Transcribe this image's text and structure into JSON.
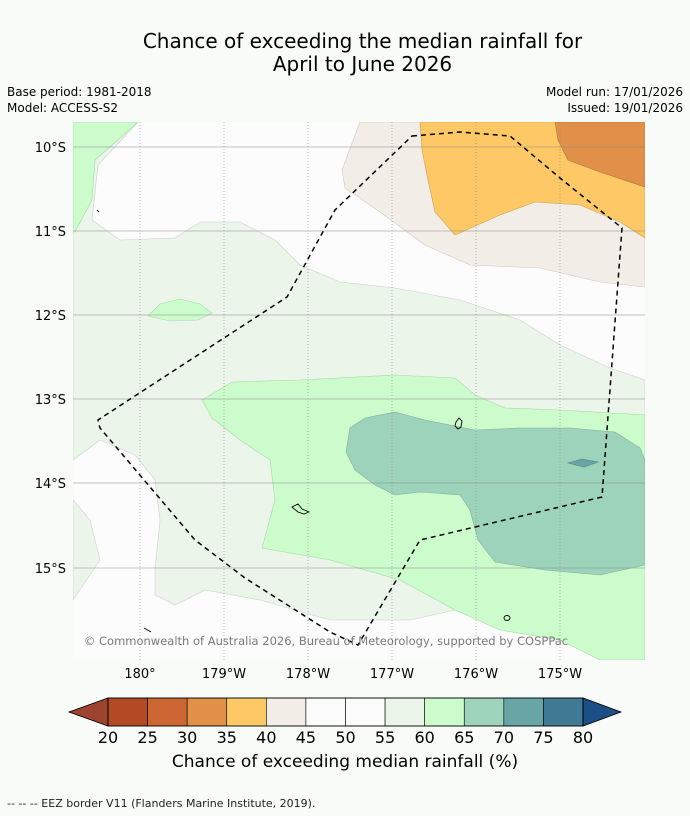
{
  "title": {
    "line1": "Chance of exceeding the median rainfall for",
    "line2": "April to June 2026"
  },
  "meta": {
    "base_period": "Base period: 1981-2018",
    "model": "Model: ACCESS-S2",
    "model_run": "Model run: 17/01/2026",
    "issued": "Issued: 19/01/2026"
  },
  "map": {
    "lat_labels": [
      "10°S",
      "11°S",
      "12°S",
      "13°S",
      "14°S",
      "15°S"
    ],
    "lon_labels": [
      "180°",
      "179°W",
      "178°W",
      "177°W",
      "176°W",
      "175°W"
    ],
    "copyright": "© Commonwealth of Australia 2026, Bureau of Meteorology, supported by COSPPac"
  },
  "colorbar": {
    "ticks": [
      "20",
      "25",
      "30",
      "35",
      "40",
      "45",
      "50",
      "55",
      "60",
      "65",
      "70",
      "75",
      "80"
    ],
    "colors": [
      "#b34a26",
      "#cc6633",
      "#e09048",
      "#fdc865",
      "#f2ede6",
      "#fbfcfb",
      "#fbfcfb",
      "#ebf5ea",
      "#ccfccc",
      "#9dd3ba",
      "#6aa5a5",
      "#417a94"
    ],
    "low_arrow_color": "#9c4430",
    "high_arrow_color": "#1c4f85",
    "label": "Chance of exceeding median rainfall (%)"
  },
  "footer": "--  --  -- EEZ border V11 (Flanders Marine Institute, 2019)."
}
